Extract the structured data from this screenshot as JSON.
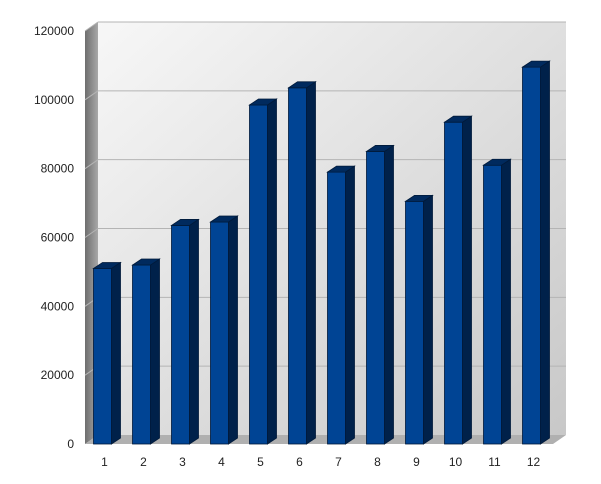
{
  "chart_data": {
    "type": "bar",
    "style": "3d-column",
    "categories": [
      "1",
      "2",
      "3",
      "4",
      "5",
      "6",
      "7",
      "8",
      "9",
      "10",
      "11",
      "12"
    ],
    "series": [
      {
        "values": [
          51000,
          52000,
          63500,
          64500,
          98500,
          103500,
          79000,
          85000,
          70500,
          93500,
          81000,
          109500
        ]
      }
    ],
    "title": "",
    "xlabel": "",
    "ylabel": "",
    "ylim": [
      0,
      120000
    ],
    "yticks": [
      0,
      20000,
      40000,
      60000,
      80000,
      100000,
      120000
    ],
    "grid": true,
    "legend": "none",
    "colors": {
      "bar_front": "#004494",
      "bar_side": "#00214a",
      "bar_top": "#002a5e",
      "wall_light": "#f7f7f7",
      "wall_dark": "#c8c8c8",
      "side_wall": "#8a8a8a",
      "floor": "#b0b0b0",
      "gridline": "#b4b4b4"
    }
  }
}
